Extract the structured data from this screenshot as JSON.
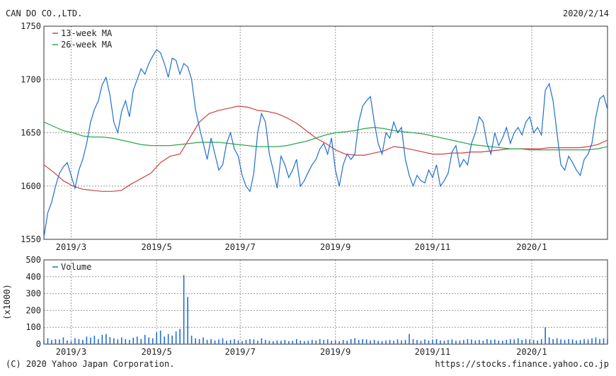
{
  "header": {
    "company": "CAN DO CO.,LTD.",
    "date": "2020/2/14"
  },
  "footer": {
    "copyright": "(C) 2020 Yahoo Japan Corporation.",
    "url": "https://stocks.finance.yahoo.co.jp"
  },
  "colors": {
    "price": "#1f6fd0",
    "ma13": "#d04040",
    "ma26": "#2aa84a",
    "volume": "#1f6fd0",
    "grid": "#999999"
  },
  "chart_data": [
    {
      "type": "line",
      "title": "",
      "ylim": [
        1550,
        1750
      ],
      "yticks": [
        1550,
        1600,
        1650,
        1700,
        1750
      ],
      "xticks": [
        {
          "x": 14,
          "label": "2019/3"
        },
        {
          "x": 58,
          "label": "2019/5"
        },
        {
          "x": 101,
          "label": "2019/7"
        },
        {
          "x": 150,
          "label": "2019/9"
        },
        {
          "x": 200,
          "label": "2019/11"
        },
        {
          "x": 251,
          "label": "2020/1"
        }
      ],
      "xlim": [
        0,
        290
      ],
      "grid": true,
      "legend": "top-left",
      "series": [
        {
          "name": "13-week MA",
          "color": "#d04040",
          "x": [
            0,
            5,
            10,
            15,
            20,
            25,
            30,
            35,
            40,
            45,
            50,
            55,
            60,
            65,
            70,
            75,
            80,
            85,
            90,
            95,
            100,
            105,
            110,
            115,
            120,
            125,
            130,
            135,
            140,
            145,
            150,
            155,
            160,
            165,
            170,
            175,
            180,
            185,
            190,
            195,
            200,
            205,
            210,
            215,
            220,
            225,
            230,
            235,
            240,
            245,
            250,
            255,
            260,
            265,
            270,
            275,
            280,
            285,
            290
          ],
          "values": [
            1620,
            1613,
            1605,
            1600,
            1597,
            1596,
            1595,
            1595,
            1596,
            1602,
            1607,
            1612,
            1622,
            1628,
            1630,
            1645,
            1660,
            1668,
            1671,
            1673,
            1675,
            1674,
            1671,
            1670,
            1668,
            1664,
            1659,
            1652,
            1645,
            1640,
            1634,
            1630,
            1629,
            1629,
            1631,
            1633,
            1637,
            1636,
            1634,
            1632,
            1630,
            1630,
            1631,
            1631,
            1632,
            1632,
            1633,
            1634,
            1635,
            1635,
            1635,
            1635,
            1636,
            1636,
            1636,
            1636,
            1637,
            1639,
            1643
          ]
        },
        {
          "name": "26-week MA",
          "color": "#2aa84a",
          "x": [
            0,
            5,
            10,
            15,
            20,
            25,
            30,
            35,
            40,
            45,
            50,
            55,
            60,
            65,
            70,
            75,
            80,
            85,
            90,
            95,
            100,
            105,
            110,
            115,
            120,
            125,
            130,
            135,
            140,
            145,
            150,
            155,
            160,
            165,
            170,
            175,
            180,
            185,
            190,
            195,
            200,
            205,
            210,
            215,
            220,
            225,
            230,
            235,
            240,
            245,
            250,
            255,
            260,
            265,
            270,
            275,
            280,
            285,
            290
          ],
          "values": [
            1660,
            1656,
            1652,
            1650,
            1647,
            1646,
            1646,
            1645,
            1643,
            1641,
            1639,
            1638,
            1638,
            1638,
            1639,
            1640,
            1641,
            1641,
            1641,
            1640,
            1639,
            1638,
            1637,
            1637,
            1637,
            1638,
            1640,
            1642,
            1645,
            1648,
            1650,
            1651,
            1652,
            1654,
            1655,
            1654,
            1652,
            1651,
            1650,
            1649,
            1647,
            1645,
            1643,
            1641,
            1639,
            1638,
            1637,
            1636,
            1635,
            1635,
            1634,
            1634,
            1634,
            1634,
            1634,
            1634,
            1634,
            1635,
            1637
          ]
        },
        {
          "name": "Price",
          "color": "#1f6fd0",
          "x": [
            0,
            2,
            4,
            6,
            8,
            10,
            12,
            14,
            16,
            18,
            20,
            22,
            24,
            26,
            28,
            30,
            32,
            34,
            36,
            38,
            40,
            42,
            44,
            46,
            48,
            50,
            52,
            54,
            56,
            58,
            60,
            62,
            64,
            66,
            68,
            70,
            72,
            74,
            76,
            78,
            80,
            82,
            84,
            86,
            88,
            90,
            92,
            94,
            96,
            98,
            100,
            102,
            104,
            106,
            108,
            110,
            112,
            114,
            116,
            118,
            120,
            122,
            124,
            126,
            128,
            130,
            132,
            134,
            136,
            138,
            140,
            142,
            144,
            146,
            148,
            150,
            152,
            154,
            156,
            158,
            160,
            162,
            164,
            166,
            168,
            170,
            172,
            174,
            176,
            178,
            180,
            182,
            184,
            186,
            188,
            190,
            192,
            194,
            196,
            198,
            200,
            202,
            204,
            206,
            208,
            210,
            212,
            214,
            216,
            218,
            220,
            222,
            224,
            226,
            228,
            230,
            232,
            234,
            236,
            238,
            240,
            242,
            244,
            246,
            248,
            250,
            252,
            254,
            256,
            258,
            260,
            262,
            264,
            266,
            268,
            270,
            272,
            274,
            276,
            278,
            280,
            282,
            284,
            286,
            288,
            290
          ],
          "values": [
            1552,
            1575,
            1585,
            1600,
            1612,
            1618,
            1622,
            1610,
            1598,
            1615,
            1625,
            1640,
            1660,
            1672,
            1680,
            1695,
            1702,
            1685,
            1660,
            1650,
            1670,
            1680,
            1665,
            1690,
            1700,
            1710,
            1705,
            1715,
            1722,
            1728,
            1725,
            1715,
            1702,
            1720,
            1718,
            1705,
            1715,
            1712,
            1700,
            1672,
            1655,
            1640,
            1625,
            1645,
            1630,
            1615,
            1620,
            1640,
            1650,
            1635,
            1628,
            1610,
            1600,
            1595,
            1612,
            1650,
            1668,
            1660,
            1630,
            1615,
            1598,
            1628,
            1620,
            1608,
            1615,
            1625,
            1600,
            1605,
            1613,
            1620,
            1625,
            1635,
            1640,
            1630,
            1645,
            1615,
            1600,
            1620,
            1630,
            1625,
            1630,
            1660,
            1675,
            1680,
            1684,
            1660,
            1640,
            1630,
            1650,
            1645,
            1660,
            1650,
            1655,
            1625,
            1610,
            1600,
            1610,
            1605,
            1603,
            1615,
            1608,
            1620,
            1600,
            1605,
            1612,
            1632,
            1638,
            1618,
            1625,
            1620,
            1640,
            1650,
            1665,
            1660,
            1640,
            1630,
            1650,
            1638,
            1645,
            1655,
            1640,
            1650,
            1655,
            1648,
            1660,
            1665,
            1650,
            1655,
            1648,
            1690,
            1696,
            1680,
            1650,
            1620,
            1615,
            1628,
            1622,
            1615,
            1610,
            1625,
            1630,
            1640,
            1665,
            1682,
            1685,
            1672
          ]
        }
      ]
    },
    {
      "type": "bar",
      "title": "",
      "ylabel": "(x1000)",
      "ylim": [
        0,
        500
      ],
      "yticks": [
        0,
        100,
        200,
        300,
        400,
        500
      ],
      "xticks": [
        {
          "x": 14,
          "label": "2019/3"
        },
        {
          "x": 58,
          "label": "2019/5"
        },
        {
          "x": 101,
          "label": "2019/7"
        },
        {
          "x": 150,
          "label": "2019/9"
        },
        {
          "x": 200,
          "label": "2019/11"
        },
        {
          "x": 251,
          "label": "2020/1"
        }
      ],
      "xlim": [
        0,
        290
      ],
      "grid": true,
      "legend": "top-left",
      "series": [
        {
          "name": "Volume",
          "color": "#1f6fd0",
          "x": [
            0,
            2,
            4,
            6,
            8,
            10,
            12,
            14,
            16,
            18,
            20,
            22,
            24,
            26,
            28,
            30,
            32,
            34,
            36,
            38,
            40,
            42,
            44,
            46,
            48,
            50,
            52,
            54,
            56,
            58,
            60,
            62,
            64,
            66,
            68,
            70,
            72,
            74,
            76,
            78,
            80,
            82,
            84,
            86,
            88,
            90,
            92,
            94,
            96,
            98,
            100,
            102,
            104,
            106,
            108,
            110,
            112,
            114,
            116,
            118,
            120,
            122,
            124,
            126,
            128,
            130,
            132,
            134,
            136,
            138,
            140,
            142,
            144,
            146,
            148,
            150,
            152,
            154,
            156,
            158,
            160,
            162,
            164,
            166,
            168,
            170,
            172,
            174,
            176,
            178,
            180,
            182,
            184,
            186,
            188,
            190,
            192,
            194,
            196,
            198,
            200,
            202,
            204,
            206,
            208,
            210,
            212,
            214,
            216,
            218,
            220,
            222,
            224,
            226,
            228,
            230,
            232,
            234,
            236,
            238,
            240,
            242,
            244,
            246,
            248,
            250,
            252,
            254,
            256,
            258,
            260,
            262,
            264,
            266,
            268,
            270,
            272,
            274,
            276,
            278,
            280,
            282,
            284,
            286,
            288,
            290
          ],
          "values": [
            20,
            35,
            25,
            30,
            28,
            40,
            22,
            18,
            35,
            30,
            25,
            45,
            38,
            50,
            30,
            55,
            60,
            42,
            35,
            28,
            40,
            30,
            25,
            38,
            45,
            30,
            55,
            40,
            35,
            70,
            80,
            45,
            60,
            50,
            75,
            90,
            410,
            280,
            50,
            35,
            30,
            40,
            25,
            30,
            22,
            28,
            35,
            20,
            25,
            30,
            22,
            18,
            25,
            30,
            28,
            20,
            35,
            25,
            20,
            18,
            22,
            20,
            25,
            18,
            20,
            30,
            22,
            18,
            20,
            25,
            22,
            30,
            25,
            28,
            20,
            22,
            18,
            25,
            20,
            30,
            35,
            25,
            30,
            28,
            22,
            25,
            20,
            18,
            22,
            25,
            20,
            28,
            22,
            25,
            60,
            30,
            25,
            20,
            28,
            22,
            25,
            30,
            22,
            20,
            25,
            28,
            20,
            22,
            25,
            30,
            28,
            22,
            25,
            20,
            30,
            25,
            28,
            22,
            20,
            25,
            30,
            28,
            35,
            25,
            30,
            28,
            25,
            22,
            30,
            100,
            40,
            30,
            35,
            28,
            25,
            30,
            28,
            22,
            25,
            30,
            28,
            35,
            40,
            30,
            35,
            30
          ]
        }
      ]
    }
  ]
}
